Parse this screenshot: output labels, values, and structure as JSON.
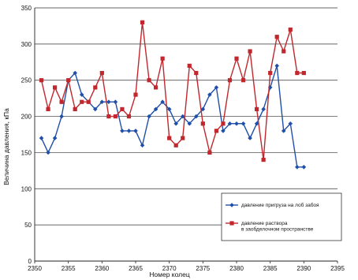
{
  "chart_data": {
    "type": "line",
    "xlabel": "Номер колец",
    "ylabel": "Величина давления, кПа",
    "xlim": [
      2350,
      2395
    ],
    "ylim": [
      0,
      350
    ],
    "x_ticks": [
      2350,
      2355,
      2360,
      2365,
      2370,
      2375,
      2380,
      2385,
      2390,
      2395
    ],
    "y_ticks": [
      0,
      50,
      100,
      150,
      200,
      250,
      300,
      350
    ],
    "grid": "horizontal",
    "legend_position": "lower-right",
    "series": [
      {
        "name": "давление пригруза на лоб забоя",
        "color": "#1f4fa8",
        "marker": "diamond",
        "x": [
          2351,
          2352,
          2353,
          2354,
          2355,
          2356,
          2357,
          2358,
          2359,
          2360,
          2361,
          2362,
          2363,
          2364,
          2365,
          2366,
          2367,
          2368,
          2369,
          2370,
          2371,
          2372,
          2373,
          2374,
          2375,
          2376,
          2377,
          2378,
          2379,
          2380,
          2381,
          2382,
          2383,
          2384,
          2385,
          2386,
          2387,
          2388,
          2389,
          2390
        ],
        "values": [
          170,
          150,
          170,
          200,
          250,
          260,
          230,
          220,
          210,
          220,
          220,
          220,
          180,
          180,
          180,
          160,
          200,
          210,
          220,
          210,
          190,
          200,
          190,
          200,
          210,
          230,
          240,
          180,
          190,
          190,
          190,
          170,
          190,
          210,
          240,
          270,
          180,
          190,
          130,
          130
        ]
      },
      {
        "name": "давление раствора в заобделочном пространстве",
        "label_lines": [
          "давление раствора",
          "в заобделочном пространстве"
        ],
        "color": "#c1272d",
        "marker": "square",
        "x": [
          2351,
          2352,
          2353,
          2354,
          2355,
          2356,
          2357,
          2358,
          2359,
          2360,
          2361,
          2362,
          2363,
          2364,
          2365,
          2366,
          2367,
          2368,
          2369,
          2370,
          2371,
          2372,
          2373,
          2374,
          2375,
          2376,
          2377,
          2378,
          2379,
          2380,
          2381,
          2382,
          2383,
          2384,
          2385,
          2386,
          2387,
          2388,
          2389,
          2390
        ],
        "values": [
          250,
          210,
          240,
          220,
          250,
          210,
          220,
          220,
          240,
          260,
          200,
          200,
          210,
          200,
          230,
          330,
          250,
          240,
          280,
          170,
          160,
          170,
          270,
          260,
          190,
          150,
          180,
          190,
          250,
          280,
          250,
          290,
          210,
          140,
          260,
          310,
          290,
          320,
          260,
          260
        ]
      }
    ]
  }
}
